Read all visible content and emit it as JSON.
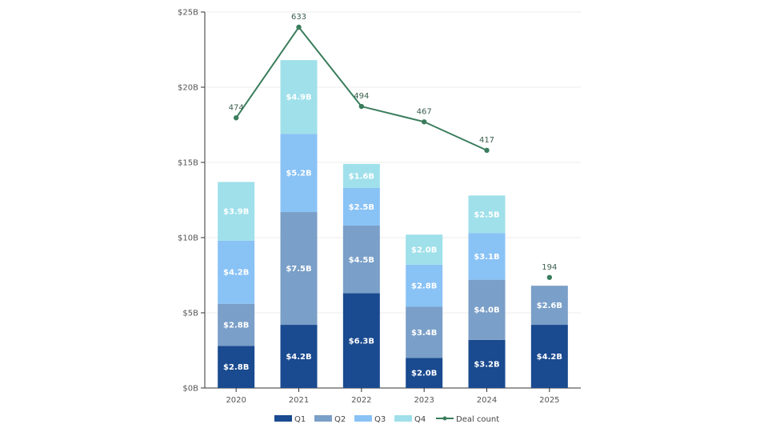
{
  "chart_data": {
    "type": "bar",
    "stacked": true,
    "categories": [
      "2020",
      "2021",
      "2022",
      "2023",
      "2024",
      "2025"
    ],
    "series": [
      {
        "name": "Q1",
        "color": "#1a4a8f",
        "values": [
          2.8,
          4.2,
          6.3,
          2.0,
          3.2,
          4.2
        ],
        "labels": [
          "$2.8B",
          "$4.2B",
          "$6.3B",
          "$2.0B",
          "$3.2B",
          "$4.2B"
        ]
      },
      {
        "name": "Q2",
        "color": "#7a9fc8",
        "values": [
          2.8,
          7.5,
          4.5,
          3.4,
          4.0,
          2.6
        ],
        "labels": [
          "$2.8B",
          "$7.5B",
          "$4.5B",
          "$3.4B",
          "$4.0B",
          "$2.6B"
        ]
      },
      {
        "name": "Q3",
        "color": "#89c2f5",
        "values": [
          4.2,
          5.2,
          2.5,
          2.8,
          3.1,
          null
        ],
        "labels": [
          "$4.2B",
          "$5.2B",
          "$2.5B",
          "$2.8B",
          "$3.1B",
          null
        ]
      },
      {
        "name": "Q4",
        "color": "#9fe0ea",
        "values": [
          3.9,
          4.9,
          1.6,
          2.0,
          2.5,
          null
        ],
        "labels": [
          "$3.9B",
          "$4.9B",
          "$1.6B",
          "$2.0B",
          "$2.5B",
          null
        ]
      }
    ],
    "line_series": {
      "name": "Deal count",
      "color": "#3a7d5c",
      "values": [
        474,
        633,
        494,
        467,
        417,
        194
      ],
      "labels": [
        "474",
        "633",
        "494",
        "467",
        "417",
        "194"
      ],
      "connected_until_index": 4
    },
    "y_axis": {
      "ticks": [
        0,
        5,
        10,
        15,
        20,
        25
      ],
      "tick_labels": [
        "$0B",
        "$5B",
        "$10B",
        "$15B",
        "$20B",
        "$25B"
      ],
      "ylim": [
        0,
        25
      ]
    },
    "grid": true,
    "legend_position": "bottom"
  }
}
